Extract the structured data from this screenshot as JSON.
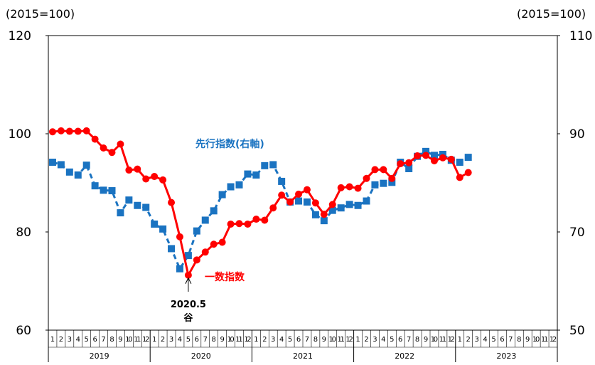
{
  "chart_data": {
    "type": "line",
    "left_axis": {
      "unit_label": "(2015=100)",
      "ylim": [
        60,
        120
      ],
      "ticks": [
        "60",
        "80",
        "100",
        "120"
      ]
    },
    "right_axis": {
      "unit_label": "(2015=100)",
      "ylim": [
        50,
        110
      ],
      "ticks": [
        "50",
        "70",
        "90",
        "110"
      ]
    },
    "x_axis": {
      "months": [
        "1",
        "2",
        "3",
        "4",
        "5",
        "6",
        "7",
        "8",
        "9",
        "10",
        "11",
        "12"
      ],
      "years": [
        "2019",
        "2020",
        "2021",
        "2022",
        "2023"
      ]
    },
    "series": [
      {
        "name": "一数指数",
        "axis": "left",
        "color": "#ff0000",
        "marker": "circle",
        "start": "2019-01",
        "values": [
          100.4,
          100.6,
          100.5,
          100.5,
          100.6,
          98.9,
          97.1,
          96.2,
          97.9,
          92.6,
          92.8,
          90.8,
          91.3,
          90.6,
          86.0,
          79.0,
          71.2,
          74.3,
          75.9,
          77.5,
          77.9,
          81.6,
          81.7,
          81.6,
          82.6,
          82.4,
          84.9,
          87.5,
          86.1,
          87.7,
          88.6,
          85.9,
          83.6,
          85.6,
          89.0,
          89.2,
          88.9,
          90.9,
          92.7,
          92.7,
          90.9,
          93.9,
          94.1,
          95.5,
          95.6,
          94.5,
          95.1,
          94.8,
          91.1,
          92.1
        ]
      },
      {
        "name": "先行指数(右軸)",
        "axis": "right",
        "color": "#1a73c1",
        "marker": "square",
        "start": "2019-01",
        "values": [
          84.2,
          83.7,
          82.2,
          81.6,
          83.6,
          79.4,
          78.5,
          78.4,
          73.9,
          76.5,
          75.4,
          75.0,
          71.6,
          70.6,
          66.6,
          62.5,
          65.2,
          70.2,
          72.4,
          74.3,
          77.6,
          79.2,
          79.6,
          81.8,
          81.6,
          83.5,
          83.7,
          80.3,
          76.1,
          76.3,
          76.1,
          73.5,
          72.3,
          74.4,
          74.9,
          75.6,
          75.4,
          76.3,
          79.6,
          79.9,
          80.1,
          84.2,
          82.9,
          85.4,
          86.4,
          85.6,
          85.8,
          84.6,
          84.2,
          85.2
        ]
      }
    ],
    "annotations": {
      "trough_date": "2020.5",
      "trough_label": "谷"
    }
  }
}
